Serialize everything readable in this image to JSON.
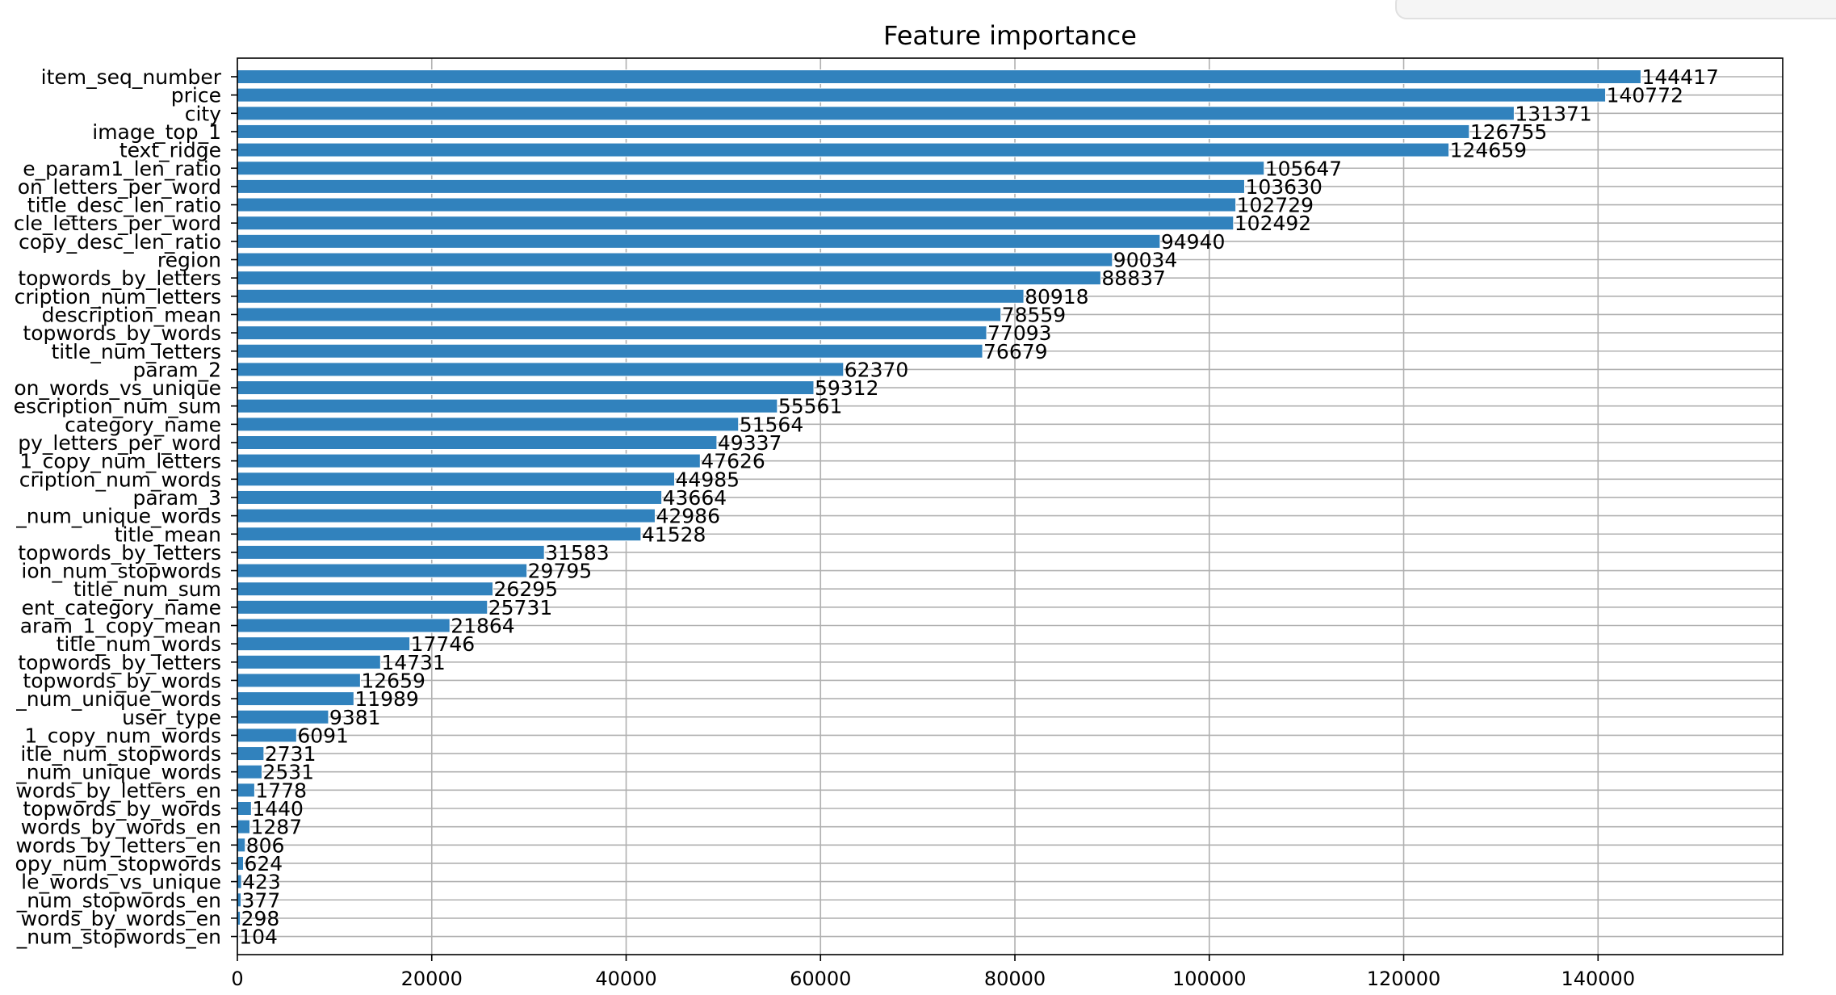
{
  "chart_data": {
    "type": "bar",
    "orientation": "horizontal",
    "title": "Feature importance",
    "xlabel": "",
    "ylabel": "",
    "xlim": [
      0,
      159000
    ],
    "x_ticks": [
      0,
      20000,
      40000,
      60000,
      80000,
      100000,
      120000,
      140000
    ],
    "x_tick_labels": [
      "0",
      "20000",
      "40000",
      "60000",
      "80000",
      "100000",
      "120000",
      "140000"
    ],
    "grid": true,
    "bar_color": "#3182bd",
    "categories": [
      "item_seq_number",
      "price",
      "city",
      "image_top_1",
      "text_ridge",
      "e_param1_len_ratio",
      "on_letters_per_word",
      "title_desc_len_ratio",
      "cle_letters_per_word",
      "copy_desc_len_ratio",
      "region",
      "topwords_by_letters",
      "cription_num_letters",
      "description_mean",
      "topwords_by_words",
      "title_num_letters",
      "param_2",
      "on_words_vs_unique",
      "escription_num_sum",
      "category_name",
      "py_letters_per_word",
      "1_copy_num_letters",
      "cription_num_words",
      "param_3",
      "_num_unique_words",
      "title_mean",
      "topwords_by_letters",
      "ion_num_stopwords",
      "title_num_sum",
      "ent_category_name",
      "aram_1_copy_mean",
      "title_num_words",
      "topwords_by_letters",
      "topwords_by_words",
      "_num_unique_words",
      "user_type",
      "1_copy_num_words",
      "itle_num_stopwords",
      "_num_unique_words",
      "words_by_letters_en",
      "topwords_by_words",
      "words_by_words_en",
      "words_by_letters_en",
      "opy_num_stopwords",
      "le_words_vs_unique",
      "_num_stopwords_en",
      "words_by_words_en",
      "_num_stopwords_en"
    ],
    "values": [
      144417,
      140772,
      131371,
      126755,
      124659,
      105647,
      103630,
      102729,
      102492,
      94940,
      90034,
      88837,
      80918,
      78559,
      77093,
      76679,
      62370,
      59312,
      55561,
      51564,
      49337,
      47626,
      44985,
      43664,
      42986,
      41528,
      31583,
      29795,
      26295,
      25731,
      21864,
      17746,
      14731,
      12659,
      11989,
      9381,
      6091,
      2731,
      2531,
      1778,
      1440,
      1287,
      806,
      624,
      423,
      377,
      298,
      104
    ],
    "value_labels": [
      "144417",
      "140772",
      "131371",
      "126755",
      "124659",
      "105647",
      "103630",
      "102729",
      "102492",
      "94940",
      "90034",
      "88837",
      "80918",
      "78559",
      "77093",
      "76679",
      "62370",
      "59312",
      "55561",
      "51564",
      "49337",
      "47626",
      "44985",
      "43664",
      "42986",
      "41528",
      "31583",
      "29795",
      "26295",
      "25731",
      "21864",
      "17746",
      "14731",
      "12659",
      "11989",
      "9381",
      "6091",
      "2731",
      "2531",
      "1778",
      "1440",
      "1287",
      "806",
      "624",
      "423",
      "377",
      "298",
      "104"
    ]
  }
}
